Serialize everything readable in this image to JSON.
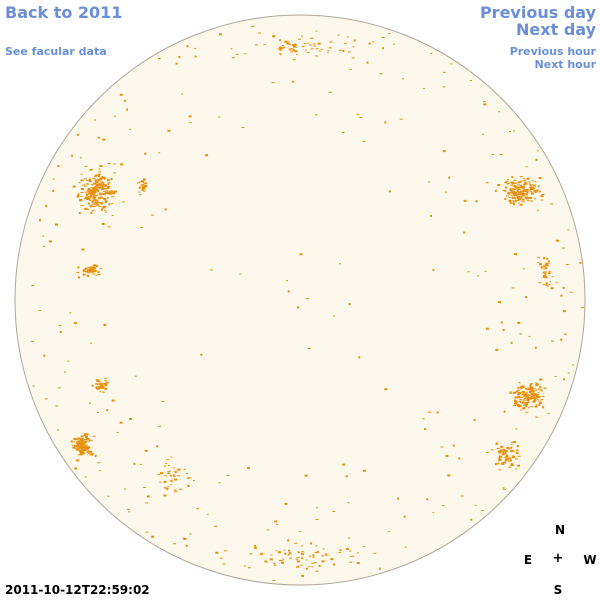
{
  "navigation": {
    "back_label": "Back to 2011",
    "facular_label": "See facular data",
    "previous_day_label": "Previous day",
    "next_day_label": "Next day",
    "previous_hour_label": "Previous hour",
    "next_hour_label": "Next hour"
  },
  "compass": {
    "north": "N",
    "south": "S",
    "east": "E",
    "west": "W",
    "center": "+"
  },
  "timestamp": "2011-10-12T22:59:02",
  "colors": {
    "link": "#6a8fd8",
    "disk_fill": "#fdf8ec",
    "disk_outline": "#b0a898",
    "facula": "#e8900c"
  }
}
